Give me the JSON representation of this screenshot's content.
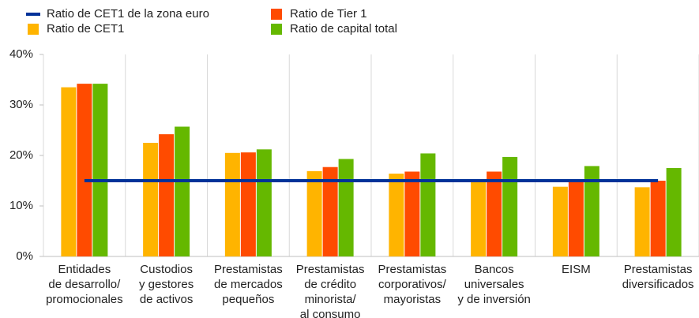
{
  "chart_data": {
    "type": "bar",
    "categories": [
      "Entidades\nde desarrollo/\npromocionales",
      "Custodios\ny gestores\nde activos",
      "Prestamistas\nde mercados\npequeños",
      "Prestamistas\nde crédito\nminorista/\nal consumo",
      "Prestamistas\ncorporativos/\nmayoristas",
      "Bancos\nuniversales\ny de inversión",
      "EISM",
      "Prestamistas\ndiversificados"
    ],
    "series": [
      {
        "name": "Ratio de CET1",
        "color": "#ffb400",
        "values": [
          33.5,
          22.5,
          20.5,
          16.9,
          16.4,
          14.8,
          13.8,
          13.7
        ]
      },
      {
        "name": "Ratio de Tier 1",
        "color": "#ff4b00",
        "values": [
          34.2,
          24.2,
          20.6,
          17.7,
          16.8,
          16.8,
          14.8,
          15.0
        ]
      },
      {
        "name": "Ratio de capital total",
        "color": "#65b800",
        "values": [
          34.2,
          25.7,
          21.2,
          19.3,
          20.4,
          19.7,
          17.9,
          17.5
        ]
      },
      {
        "name": "Ratio de CET1 de la zona euro",
        "color": "#003299",
        "type": "line",
        "values": [
          15,
          15,
          15,
          15,
          15,
          15,
          15,
          15
        ]
      }
    ],
    "ylim": [
      0,
      40
    ],
    "yticks": [
      {
        "value": 0,
        "label": "0%"
      },
      {
        "value": 10,
        "label": "10%"
      },
      {
        "value": 20,
        "label": "20%"
      },
      {
        "value": 30,
        "label": "30%"
      },
      {
        "value": 40,
        "label": "40%"
      }
    ]
  }
}
